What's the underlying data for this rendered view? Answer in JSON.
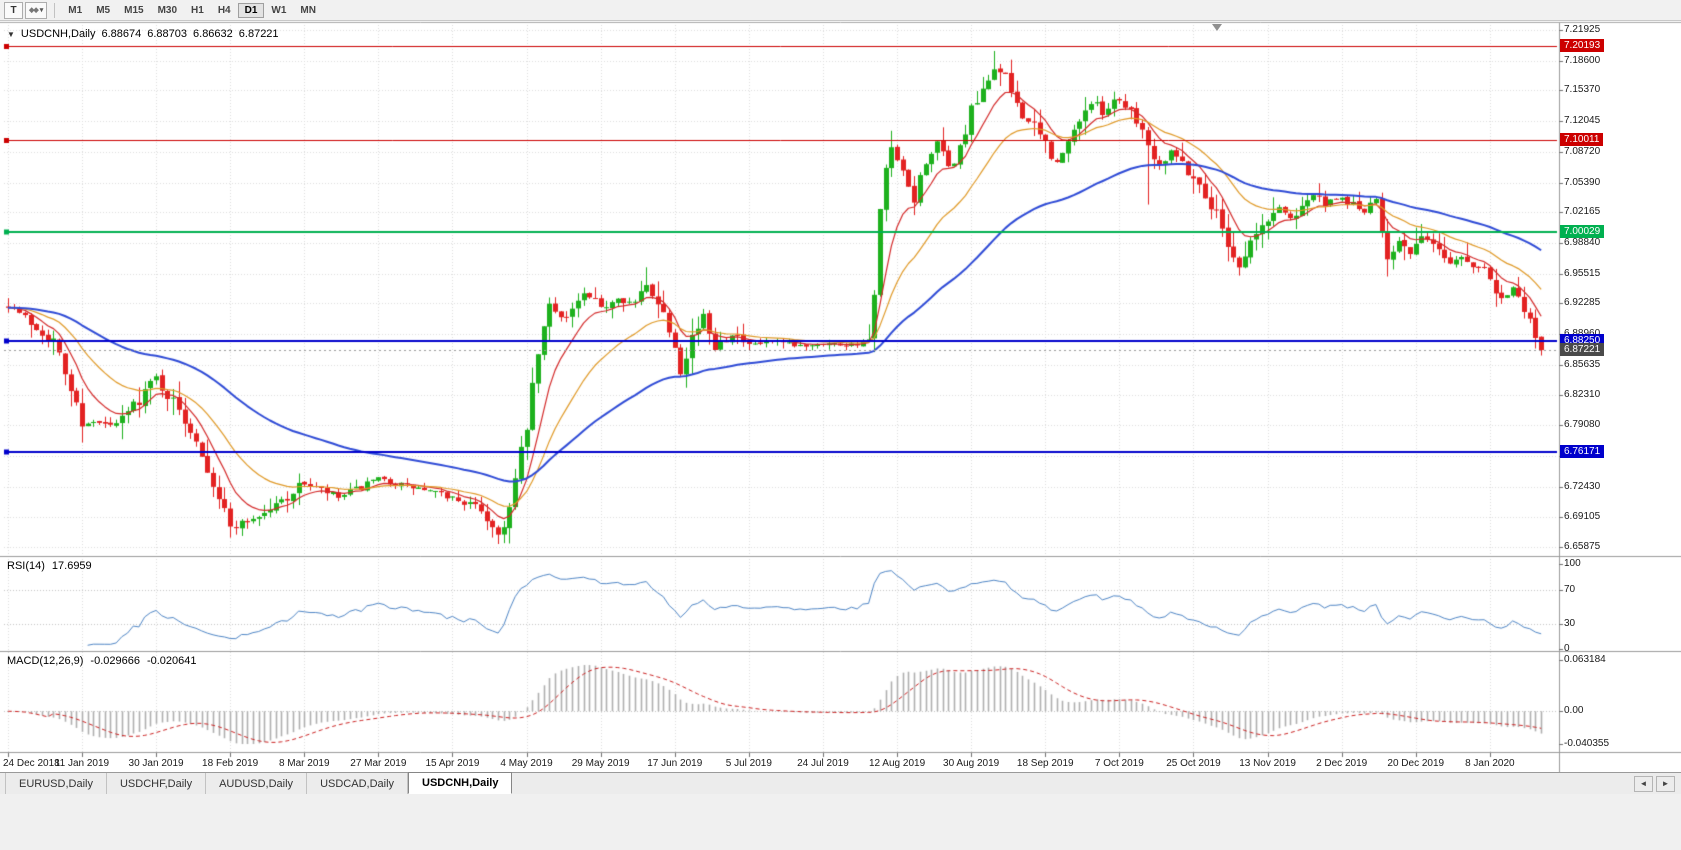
{
  "toolbar": {
    "text_tool": "T",
    "styles_tool": "◆◆",
    "dropdown_icon": "▾",
    "timeframes": [
      "M1",
      "M5",
      "M15",
      "M30",
      "H1",
      "H4",
      "D1",
      "W1",
      "MN"
    ],
    "active_timeframe": "D1"
  },
  "chart": {
    "title": {
      "icon": "▼",
      "symbol": "USDCNH,Daily",
      "ohlc": [
        "6.88674",
        "6.88703",
        "6.86632",
        "6.87221"
      ]
    },
    "price_axis_labels": [
      "7.21925",
      "7.18600",
      "7.15370",
      "7.12045",
      "7.08720",
      "7.05390",
      "7.02165",
      "6.98840",
      "6.95515",
      "6.92285",
      "6.88960",
      "6.85635",
      "6.82310",
      "6.79080",
      "6.75755",
      "6.72430",
      "6.69105",
      "6.65875"
    ],
    "hlines": [
      {
        "price": 7.20193,
        "label": "7.20193",
        "color": "#cc0000",
        "width": 1
      },
      {
        "price": 7.10011,
        "label": "7.10011",
        "color": "#cc0000",
        "width": 1
      },
      {
        "price": 7.00029,
        "label": "7.00029",
        "color": "#00b050",
        "width": 2
      },
      {
        "price": 6.8825,
        "label": "6.88250",
        "color": "#0000cc",
        "width": 2
      },
      {
        "price": 6.76171,
        "label": "6.76171",
        "color": "#0000cc",
        "width": 2
      }
    ],
    "current_price": {
      "value": 6.87221,
      "label": "6.87221",
      "color": "#4a4a4a"
    },
    "date_labels": [
      "24 Dec 2018",
      "11 Jan 2019",
      "30 Jan 2019",
      "18 Feb 2019",
      "8 Mar 2019",
      "27 Mar 2019",
      "15 Apr 2019",
      "4 May 2019",
      "29 May 2019",
      "17 Jun 2019",
      "5 Jul 2019",
      "24 Jul 2019",
      "12 Aug 2019",
      "30 Aug 2019",
      "18 Sep 2019",
      "7 Oct 2019",
      "25 Oct 2019",
      "13 Nov 2019",
      "2 Dec 2019",
      "20 Dec 2019",
      "8 Jan 2020"
    ]
  },
  "rsi": {
    "label": "RSI(14)",
    "value": "17.6959",
    "scale_labels": [
      "100",
      "70",
      "30",
      "0"
    ],
    "levels": [
      70,
      30
    ],
    "line_color": "#4f86c6"
  },
  "macd": {
    "label": "MACD(12,26,9)",
    "value_main": "-0.029666",
    "value_signal": "-0.020641",
    "axis_labels": [
      "0.063184",
      "0.00",
      "-0.040355"
    ],
    "hist_color": "#b0b0b0",
    "signal_color": "#cc2222"
  },
  "tabs": {
    "items": [
      "EURUSD,Daily",
      "USDCHF,Daily",
      "AUDUSD,Daily",
      "USDCAD,Daily",
      "USDCNH,Daily"
    ],
    "active": "USDCNH,Daily",
    "scroll_left": "◄",
    "scroll_right": "►"
  },
  "colors": {
    "up": "#1db11d",
    "down": "#e32222",
    "grid": "#dcdcdc",
    "separator": "#9a9a9a",
    "tick": "#707070"
  },
  "chart_data": {
    "type": "candlestick",
    "symbol": "USDCNH",
    "timeframe": "Daily",
    "bars": 270,
    "bars_per_tick": 13,
    "seed": 7,
    "close_waypoints": [
      [
        0,
        6.922
      ],
      [
        8,
        6.882
      ],
      [
        13,
        6.795
      ],
      [
        19,
        6.79
      ],
      [
        26,
        6.843
      ],
      [
        33,
        6.778
      ],
      [
        39,
        6.68
      ],
      [
        45,
        6.695
      ],
      [
        52,
        6.728
      ],
      [
        58,
        6.712
      ],
      [
        65,
        6.732
      ],
      [
        72,
        6.722
      ],
      [
        78,
        6.712
      ],
      [
        83,
        6.7
      ],
      [
        86,
        6.672
      ],
      [
        88,
        6.7
      ],
      [
        91,
        6.79
      ],
      [
        93,
        6.868
      ],
      [
        95,
        6.92
      ],
      [
        98,
        6.908
      ],
      [
        101,
        6.932
      ],
      [
        104,
        6.918
      ],
      [
        107,
        6.93
      ],
      [
        110,
        6.922
      ],
      [
        112,
        6.942
      ],
      [
        114,
        6.928
      ],
      [
        117,
        6.88
      ],
      [
        118,
        6.852
      ],
      [
        120,
        6.888
      ],
      [
        122,
        6.908
      ],
      [
        124,
        6.878
      ],
      [
        127,
        6.89
      ],
      [
        130,
        6.876
      ],
      [
        134,
        6.882
      ],
      [
        138,
        6.876
      ],
      [
        143,
        6.88
      ],
      [
        147,
        6.878
      ],
      [
        150,
        6.88
      ],
      [
        151,
        6.884
      ],
      [
        152,
        6.928
      ],
      [
        153,
        7.02
      ],
      [
        154,
        7.065
      ],
      [
        155,
        7.09
      ],
      [
        157,
        7.06
      ],
      [
        159,
        7.035
      ],
      [
        161,
        7.08
      ],
      [
        163,
        7.095
      ],
      [
        165,
        7.07
      ],
      [
        167,
        7.09
      ],
      [
        169,
        7.13
      ],
      [
        171,
        7.15
      ],
      [
        173,
        7.18
      ],
      [
        175,
        7.165
      ],
      [
        177,
        7.14
      ],
      [
        179,
        7.12
      ],
      [
        182,
        7.095
      ],
      [
        184,
        7.075
      ],
      [
        186,
        7.095
      ],
      [
        188,
        7.125
      ],
      [
        190,
        7.14
      ],
      [
        192,
        7.13
      ],
      [
        194,
        7.145
      ],
      [
        196,
        7.14
      ],
      [
        198,
        7.125
      ],
      [
        200,
        7.095
      ],
      [
        202,
        7.075
      ],
      [
        204,
        7.09
      ],
      [
        206,
        7.075
      ],
      [
        208,
        7.06
      ],
      [
        210,
        7.04
      ],
      [
        212,
        7.02
      ],
      [
        214,
        6.99
      ],
      [
        216,
        6.962
      ],
      [
        218,
        6.99
      ],
      [
        221,
        7.012
      ],
      [
        223,
        7.028
      ],
      [
        225,
        7.015
      ],
      [
        227,
        7.032
      ],
      [
        229,
        7.04
      ],
      [
        231,
        7.03
      ],
      [
        234,
        7.036
      ],
      [
        236,
        7.03
      ],
      [
        238,
        7.022
      ],
      [
        240,
        7.032
      ],
      [
        242,
        6.975
      ],
      [
        244,
        6.992
      ],
      [
        246,
        6.975
      ],
      [
        247,
        6.985
      ],
      [
        249,
        6.995
      ],
      [
        251,
        6.978
      ],
      [
        253,
        6.968
      ],
      [
        255,
        6.975
      ],
      [
        257,
        6.962
      ],
      [
        259,
        6.968
      ],
      [
        260,
        6.952
      ],
      [
        262,
        6.93
      ],
      [
        264,
        6.94
      ],
      [
        266,
        6.912
      ],
      [
        268,
        6.89
      ],
      [
        269,
        6.872
      ]
    ],
    "wick_events": [
      {
        "i": 13,
        "low": 6.772
      },
      {
        "i": 86,
        "low": 6.662
      },
      {
        "i": 112,
        "high": 6.962
      },
      {
        "i": 155,
        "high": 7.11
      },
      {
        "i": 173,
        "high": 7.1965
      },
      {
        "i": 200,
        "low": 7.03
      },
      {
        "i": 216,
        "low": 6.953
      },
      {
        "i": 242,
        "low": 6.952
      }
    ],
    "last_bar": {
      "open": 6.88674,
      "high": 6.88703,
      "low": 6.86632,
      "close": 6.87221
    },
    "moving_averages": [
      {
        "period": 8,
        "color": "#d42a2a",
        "width": 1.2
      },
      {
        "period": 20,
        "color": "#e09a28",
        "width": 1.2
      },
      {
        "period": 56,
        "color": "#2f4bd6",
        "width": 2
      }
    ],
    "rsi_period": 14,
    "macd_params": [
      12,
      26,
      9
    ]
  }
}
